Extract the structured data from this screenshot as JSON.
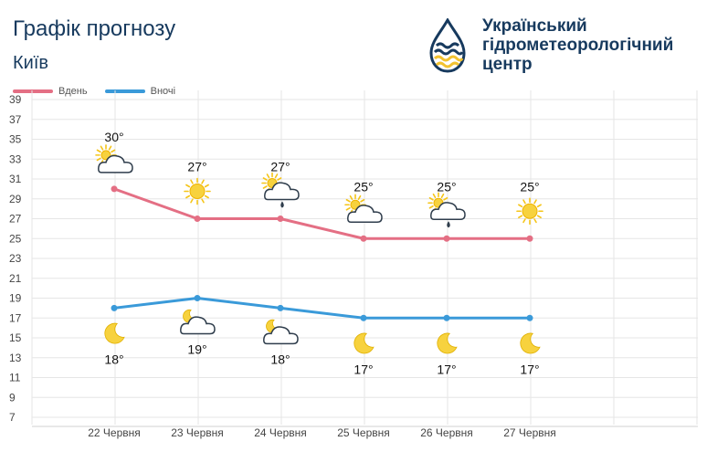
{
  "header": {
    "title": "Графік прогнозу",
    "city": "Київ",
    "org_line1": "Український",
    "org_line2": "гідрометеорологічний",
    "org_line3": "центр"
  },
  "colors": {
    "day": "#e46f84",
    "night": "#3a9ad9",
    "text": "#173a5e",
    "grid": "#e6e6e6"
  },
  "chart_data": {
    "type": "line",
    "categories": [
      "22 Червня",
      "23 Червня",
      "24 Червня",
      "25 Червня",
      "26 Червня",
      "27 Червня"
    ],
    "series": [
      {
        "name": "Вдень",
        "values": [
          30,
          27,
          27,
          25,
          25,
          25
        ],
        "labels": [
          "30°",
          "27°",
          "27°",
          "25°",
          "25°",
          "25°"
        ],
        "icons": [
          "sun-cloud-icon",
          "sun-icon",
          "sun-cloud-rain-icon",
          "sun-cloud-icon",
          "sun-cloud-rain-icon",
          "sun-icon"
        ]
      },
      {
        "name": "Вночі",
        "values": [
          18,
          19,
          18,
          17,
          17,
          17
        ],
        "labels": [
          "18°",
          "19°",
          "18°",
          "17°",
          "17°",
          "17°"
        ],
        "icons": [
          "moon-icon",
          "moon-cloud-icon",
          "moon-cloud-icon",
          "moon-icon",
          "moon-icon",
          "moon-icon"
        ]
      }
    ],
    "yticks": [
      "7",
      "9",
      "11",
      "13",
      "15",
      "17",
      "19",
      "21",
      "23",
      "25",
      "27",
      "29",
      "31",
      "33",
      "35",
      "37",
      "39"
    ],
    "ylim": [
      7,
      39
    ],
    "grid": true,
    "legend": "top-left"
  }
}
